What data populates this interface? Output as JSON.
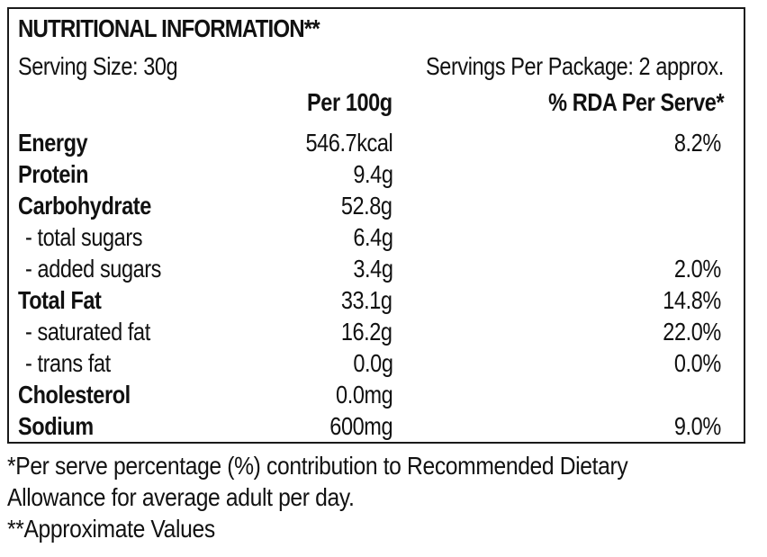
{
  "panel": {
    "title": "NUTRITIONAL INFORMATION**",
    "serving_size": "Serving Size: 30g",
    "servings_per_package": "Servings Per Package: 2 approx.",
    "col_per100": "Per 100g",
    "col_rda": "% RDA Per Serve*"
  },
  "rows": [
    {
      "name": "Energy",
      "per100": "546.7kcal",
      "rda": "8.2%"
    },
    {
      "name": "Protein",
      "per100": "9.4g",
      "rda": ""
    },
    {
      "name": "Carbohydrate",
      "per100": "52.8g",
      "rda": ""
    },
    {
      "name": " - total sugars",
      "per100": "6.4g",
      "rda": ""
    },
    {
      "name": " - added sugars",
      "per100": "3.4g",
      "rda": "2.0%"
    },
    {
      "name": "Total Fat",
      "per100": "33.1g",
      "rda": "14.8%"
    },
    {
      "name": " - saturated fat",
      "per100": "16.2g",
      "rda": "22.0%"
    },
    {
      "name": " - trans fat",
      "per100": "0.0g",
      "rda": "0.0%"
    },
    {
      "name": "Cholesterol",
      "per100": "0.0mg",
      "rda": ""
    },
    {
      "name": "Sodium",
      "per100": "600mg",
      "rda": "9.0%"
    }
  ],
  "footnotes": {
    "line1": "*Per serve percentage (%) contribution to Recommended  Dietary",
    "line2": "Allowance for average adult per day.",
    "line3": "**Approximate Values"
  }
}
